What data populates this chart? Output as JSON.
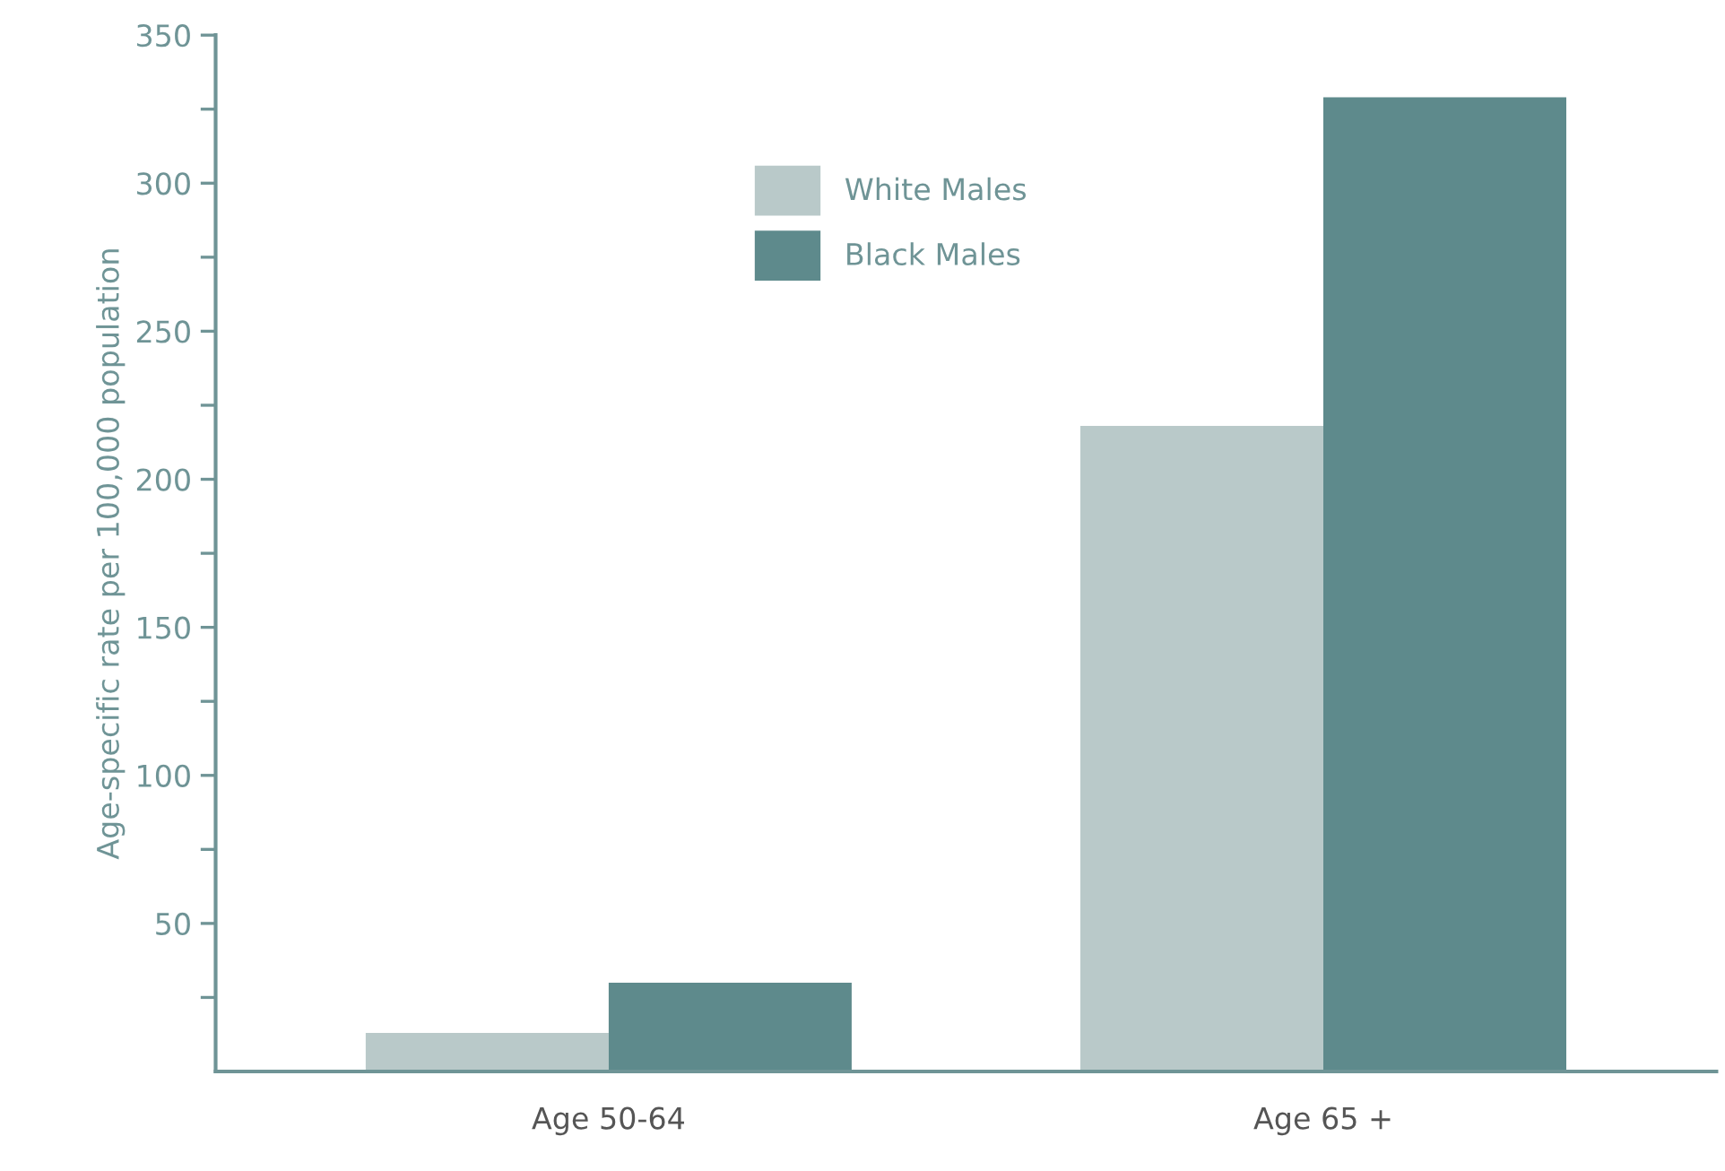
{
  "chart_data": {
    "type": "bar",
    "ylabel": "Age-specific rate per 100,000 population",
    "categories": [
      "Age 50-64",
      "Age 65 +"
    ],
    "series": [
      {
        "name": "White Males",
        "color": "#b9c9c9",
        "values": [
          13,
          218
        ]
      },
      {
        "name": "Black Males",
        "color": "#5e8a8c",
        "values": [
          30,
          329
        ]
      }
    ],
    "ylim": [
      0,
      350
    ],
    "yticks": [
      {
        "value": 25,
        "label": null
      },
      50,
      {
        "value": 75,
        "label": null
      },
      100,
      {
        "value": 125,
        "label": null
      },
      150,
      {
        "value": 175,
        "label": null
      },
      200,
      {
        "value": 225,
        "label": null
      },
      250,
      {
        "value": 275,
        "label": null
      },
      300,
      {
        "value": 325,
        "label": null
      },
      350
    ],
    "grid": false,
    "legend": "top"
  }
}
